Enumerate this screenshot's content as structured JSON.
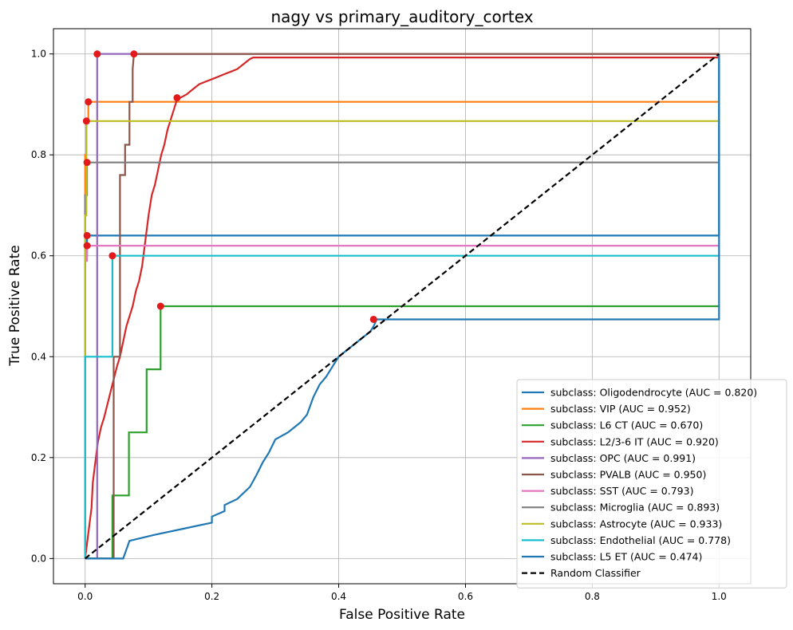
{
  "chart_data": {
    "type": "line",
    "title": "nagy vs primary_auditory_cortex",
    "xlabel": "False Positive Rate",
    "ylabel": "True Positive Rate",
    "xlim": [
      -0.05,
      1.05
    ],
    "ylim": [
      -0.05,
      1.05
    ],
    "xticks": [
      "0.0",
      "0.2",
      "0.4",
      "0.6",
      "0.8",
      "1.0"
    ],
    "yticks": [
      "0.0",
      "0.2",
      "0.4",
      "0.6",
      "0.8",
      "1.0"
    ],
    "grid": true,
    "legend_position": "lower-right",
    "series": [
      {
        "name": "subclass: Oligodendrocyte (AUC = 0.820)",
        "color": "#1f77b4",
        "x": [
          0,
          0,
          0.003,
          0.003,
          1,
          1
        ],
        "y": [
          0,
          0.6,
          0.6,
          0.64,
          0.64,
          1.0
        ],
        "marker": [
          0.003,
          0.64
        ]
      },
      {
        "name": "subclass: VIP (AUC = 0.952)",
        "color": "#ff7f0e",
        "x": [
          0,
          0,
          0.002,
          0.002,
          0.005,
          0.005,
          1
        ],
        "y": [
          0,
          0.8,
          0.8,
          0.87,
          0.87,
          0.905,
          0.905
        ],
        "marker": [
          0.005,
          0.905
        ]
      },
      {
        "name": "subclass: L6 CT (AUC = 0.670)",
        "color": "#2ca02c",
        "x": [
          0,
          0.043,
          0.043,
          0.069,
          0.069,
          0.097,
          0.097,
          0.119,
          0.119,
          1
        ],
        "y": [
          0,
          0,
          0.125,
          0.125,
          0.25,
          0.25,
          0.375,
          0.375,
          0.5,
          0.5
        ],
        "marker": [
          0.119,
          0.5
        ]
      },
      {
        "name": "subclass: L2/3-6 IT (AUC = 0.920)",
        "color": "#d62728",
        "x": [
          0,
          0.01,
          0.012,
          0.015,
          0.02,
          0.025,
          0.03,
          0.04,
          0.05,
          0.055,
          0.06,
          0.065,
          0.07,
          0.075,
          0.08,
          0.085,
          0.09,
          0.095,
          0.1,
          0.105,
          0.11,
          0.115,
          0.12,
          0.125,
          0.13,
          0.135,
          0.14,
          0.145,
          0.15,
          0.16,
          0.17,
          0.18,
          0.19,
          0.2,
          0.21,
          0.22,
          0.23,
          0.24,
          0.25,
          0.26,
          0.265,
          0.3,
          0.4,
          0.6,
          0.8,
          1.0,
          1.0
        ],
        "y": [
          0,
          0.1,
          0.15,
          0.18,
          0.23,
          0.26,
          0.28,
          0.33,
          0.38,
          0.4,
          0.43,
          0.46,
          0.48,
          0.5,
          0.53,
          0.55,
          0.58,
          0.63,
          0.68,
          0.72,
          0.74,
          0.77,
          0.8,
          0.82,
          0.85,
          0.87,
          0.89,
          0.91,
          0.913,
          0.92,
          0.93,
          0.94,
          0.945,
          0.95,
          0.955,
          0.96,
          0.965,
          0.97,
          0.98,
          0.99,
          0.993,
          0.993,
          0.993,
          0.993,
          0.993,
          0.993,
          1.0
        ],
        "marker": [
          0.145,
          0.913
        ]
      },
      {
        "name": "subclass: OPC (AUC = 0.991)",
        "color": "#9467bd",
        "x": [
          0,
          0.019,
          0.019,
          1
        ],
        "y": [
          0,
          0,
          1.0,
          1.0
        ],
        "marker": [
          0.019,
          1.0
        ]
      },
      {
        "name": "subclass: PVALB (AUC = 0.950)",
        "color": "#8c564b",
        "x": [
          0,
          0.045,
          0.045,
          0.055,
          0.055,
          0.063,
          0.063,
          0.07,
          0.07,
          0.075,
          0.075,
          0.077,
          1
        ],
        "y": [
          0,
          0,
          0.4,
          0.4,
          0.76,
          0.76,
          0.82,
          0.82,
          0.905,
          0.905,
          0.97,
          1.0,
          1.0
        ],
        "marker": [
          0.077,
          1.0
        ]
      },
      {
        "name": "subclass: SST (AUC = 0.793)",
        "color": "#e377c2",
        "x": [
          0,
          0,
          0.003,
          0.003,
          1
        ],
        "y": [
          0,
          0.59,
          0.59,
          0.62,
          0.62
        ],
        "marker": [
          0.003,
          0.62
        ]
      },
      {
        "name": "subclass: Microglia (AUC = 0.893)",
        "color": "#7f7f7f",
        "x": [
          0,
          0,
          0.003,
          0.003,
          1
        ],
        "y": [
          0,
          0.72,
          0.72,
          0.785,
          0.785
        ],
        "marker": [
          0.003,
          0.785
        ]
      },
      {
        "name": "subclass: Astrocyte (AUC = 0.933)",
        "color": "#bcbd22",
        "x": [
          0,
          0,
          0.002,
          0.002,
          1
        ],
        "y": [
          0,
          0.68,
          0.68,
          0.867,
          0.867
        ],
        "marker": [
          0.002,
          0.867
        ]
      },
      {
        "name": "subclass: Endothelial (AUC = 0.778)",
        "color": "#17becf",
        "x": [
          0,
          0,
          0.043,
          0.043,
          1
        ],
        "y": [
          0,
          0.4,
          0.4,
          0.6,
          0.6
        ],
        "marker": [
          0.043,
          0.6
        ]
      },
      {
        "name": "subclass: L5 ET (AUC = 0.474)",
        "color": "#1f77b4",
        "x": [
          0,
          0.06,
          0.07,
          0.07,
          0.11,
          0.11,
          0.155,
          0.155,
          0.2,
          0.2,
          0.22,
          0.22,
          0.24,
          0.25,
          0.26,
          0.27,
          0.28,
          0.29,
          0.3,
          0.32,
          0.33,
          0.34,
          0.35,
          0.36,
          0.37,
          0.38,
          0.39,
          0.4,
          0.41,
          0.42,
          0.43,
          0.44,
          0.45,
          0.455,
          0.46,
          1,
          1
        ],
        "y": [
          0,
          0,
          0.035,
          0.035,
          0.047,
          0.047,
          0.059,
          0.059,
          0.071,
          0.083,
          0.094,
          0.106,
          0.118,
          0.13,
          0.142,
          0.165,
          0.19,
          0.21,
          0.236,
          0.25,
          0.26,
          0.27,
          0.285,
          0.32,
          0.345,
          0.36,
          0.38,
          0.4,
          0.41,
          0.42,
          0.43,
          0.44,
          0.45,
          0.46,
          0.474,
          0.474,
          1.0
        ],
        "marker": [
          0.455,
          0.474
        ]
      },
      {
        "name": "Random Classifier",
        "color": "#000000",
        "dashed": true,
        "x": [
          0,
          1
        ],
        "y": [
          0,
          1
        ]
      }
    ]
  }
}
